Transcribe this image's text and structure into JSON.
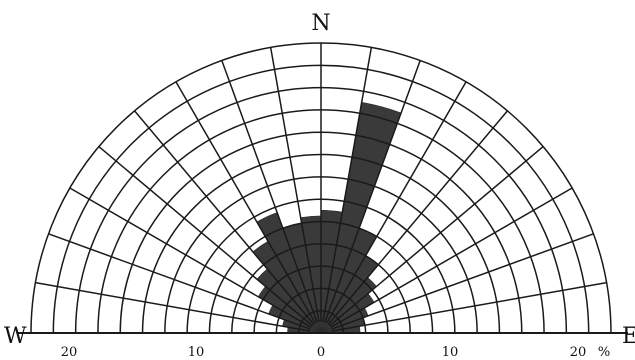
{
  "chart_data": {
    "type": "rose",
    "title": "",
    "directions": {
      "north": "N",
      "west": "W",
      "east": "E"
    },
    "radial_unit": "%",
    "radial_ticks": [
      {
        "value": 20,
        "label": "20",
        "side": "west"
      },
      {
        "value": 10,
        "label": "10",
        "side": "west"
      },
      {
        "value": 0,
        "label": "0",
        "side": "center"
      },
      {
        "value": 10,
        "label": "10",
        "side": "east"
      },
      {
        "value": 20,
        "label": "20",
        "side": "east"
      }
    ],
    "radial_max": 26,
    "ring_step": 2,
    "sector_width_deg": 10,
    "sectors": [
      {
        "from_deg": 270,
        "to_deg": 280,
        "value": 3
      },
      {
        "from_deg": 280,
        "to_deg": 290,
        "value": 3.5
      },
      {
        "from_deg": 290,
        "to_deg": 300,
        "value": 5
      },
      {
        "from_deg": 300,
        "to_deg": 310,
        "value": 6.5
      },
      {
        "from_deg": 310,
        "to_deg": 320,
        "value": 7.5
      },
      {
        "from_deg": 320,
        "to_deg": 330,
        "value": 9.5
      },
      {
        "from_deg": 330,
        "to_deg": 340,
        "value": 11.5
      },
      {
        "from_deg": 340,
        "to_deg": 350,
        "value": 10
      },
      {
        "from_deg": 350,
        "to_deg": 360,
        "value": 10.5
      },
      {
        "from_deg": 0,
        "to_deg": 10,
        "value": 11
      },
      {
        "from_deg": 10,
        "to_deg": 20,
        "value": 21
      },
      {
        "from_deg": 20,
        "to_deg": 30,
        "value": 10
      },
      {
        "from_deg": 30,
        "to_deg": 40,
        "value": 8
      },
      {
        "from_deg": 40,
        "to_deg": 50,
        "value": 6.5
      },
      {
        "from_deg": 50,
        "to_deg": 60,
        "value": 5.5
      },
      {
        "from_deg": 60,
        "to_deg": 70,
        "value": 4.5
      },
      {
        "from_deg": 70,
        "to_deg": 80,
        "value": 4
      },
      {
        "from_deg": 80,
        "to_deg": 90,
        "value": 3.5
      }
    ]
  }
}
